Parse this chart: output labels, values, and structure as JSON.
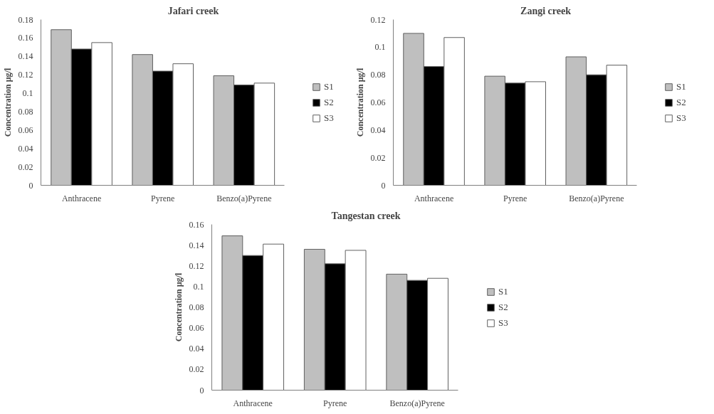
{
  "chart_data": [
    {
      "type": "bar",
      "title": "Jafari creek",
      "ylabel": "Concentration µg/l",
      "categories": [
        "Anthracene",
        "Pyrene",
        "Benzo(a)Pyrene"
      ],
      "ylim": [
        0,
        0.18
      ],
      "yticks": [
        0,
        0.02,
        0.04,
        0.06,
        0.08,
        0.1,
        0.12,
        0.14,
        0.16,
        0.18
      ],
      "legend": "right",
      "grid": false,
      "series": [
        {
          "name": "S1",
          "color": "#bfbfbf",
          "values": [
            0.169,
            0.142,
            0.119
          ]
        },
        {
          "name": "S2",
          "color": "#000000",
          "values": [
            0.148,
            0.124,
            0.109
          ]
        },
        {
          "name": "S3",
          "color": "#ffffff",
          "values": [
            0.155,
            0.132,
            0.111
          ]
        }
      ]
    },
    {
      "type": "bar",
      "title": "Zangi creek",
      "ylabel": "Concentration µg/l",
      "categories": [
        "Anthracene",
        "Pyrene",
        "Benzo(a)Pyrene"
      ],
      "ylim": [
        0,
        0.12
      ],
      "yticks": [
        0,
        0.02,
        0.04,
        0.06,
        0.08,
        0.1,
        0.12
      ],
      "legend": "right",
      "grid": false,
      "series": [
        {
          "name": "S1",
          "color": "#bfbfbf",
          "values": [
            0.11,
            0.079,
            0.093
          ]
        },
        {
          "name": "S2",
          "color": "#000000",
          "values": [
            0.086,
            0.074,
            0.08
          ]
        },
        {
          "name": "S3",
          "color": "#ffffff",
          "values": [
            0.107,
            0.075,
            0.087
          ]
        }
      ]
    },
    {
      "type": "bar",
      "title": "Tangestan creek",
      "ylabel": "Concentration µg/l",
      "categories": [
        "Anthracene",
        "Pyrene",
        "Benzo(a)Pyrene"
      ],
      "ylim": [
        0,
        0.16
      ],
      "yticks": [
        0,
        0.02,
        0.04,
        0.06,
        0.08,
        0.1,
        0.12,
        0.14,
        0.16
      ],
      "legend": "right",
      "grid": false,
      "series": [
        {
          "name": "S1",
          "color": "#bfbfbf",
          "values": [
            0.149,
            0.136,
            0.112
          ]
        },
        {
          "name": "S2",
          "color": "#000000",
          "values": [
            0.13,
            0.122,
            0.106
          ]
        },
        {
          "name": "S3",
          "color": "#ffffff",
          "values": [
            0.141,
            0.135,
            0.108
          ]
        }
      ]
    }
  ]
}
